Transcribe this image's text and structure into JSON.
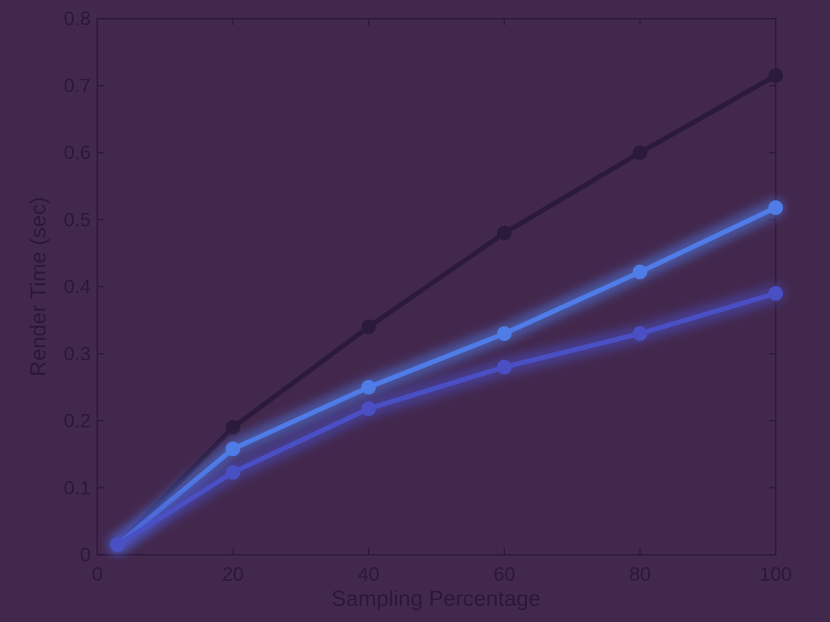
{
  "chart_data": {
    "type": "line",
    "title": "",
    "xlabel": "Sampling Percentage",
    "ylabel": "Render Time (sec)",
    "xlim": [
      0,
      100
    ],
    "ylim": [
      0,
      0.8
    ],
    "x_ticks": [
      0,
      20,
      40,
      60,
      80,
      100
    ],
    "x_tick_labels": [
      "0",
      "20",
      "40",
      "60",
      "80",
      "100"
    ],
    "y_ticks": [
      0,
      0.1,
      0.2,
      0.3,
      0.4,
      0.5,
      0.6,
      0.7,
      0.8
    ],
    "y_tick_labels": [
      "0",
      "0.1",
      "0.2",
      "0.3",
      "0.4",
      "0.5",
      "0.6",
      "0.7",
      "0.8"
    ],
    "grid": false,
    "legend": "none",
    "x": [
      3,
      20,
      40,
      60,
      80,
      100
    ],
    "series": [
      {
        "values": [
          0.015,
          0.19,
          0.34,
          0.48,
          0.6,
          0.715
        ],
        "color": "#2c1a3b",
        "glow": false
      },
      {
        "values": [
          0.015,
          0.158,
          0.25,
          0.33,
          0.422,
          0.518
        ],
        "color": "#4f7ce6",
        "glow": true
      },
      {
        "values": [
          0.015,
          0.123,
          0.218,
          0.28,
          0.33,
          0.39
        ],
        "color": "#4a4fc4",
        "glow": true
      }
    ],
    "colors": {
      "background": "#43284d",
      "axis": "#2a1838",
      "text": "#2a1838"
    }
  }
}
